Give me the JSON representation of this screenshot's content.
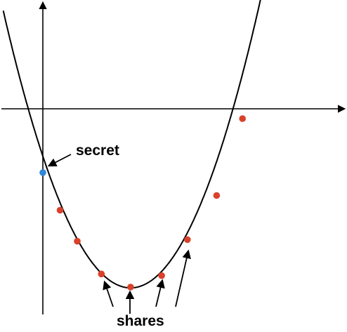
{
  "labels": {
    "secret": "secret",
    "shares": "shares"
  },
  "colors": {
    "curve": "#000000",
    "axes": "#000000",
    "secret_point": "#2f86d6",
    "share_point": "#d9412b"
  },
  "points": {
    "secret": {
      "x": 0,
      "y": -3.9
    },
    "shares": [
      {
        "x": 1.0,
        "y": -6.2
      },
      {
        "x": 2.0,
        "y": -8.1
      },
      {
        "x": 3.4,
        "y": -10.1
      },
      {
        "x": 5.1,
        "y": -10.9
      },
      {
        "x": 6.9,
        "y": -10.2
      },
      {
        "x": 8.4,
        "y": -8.0
      },
      {
        "x": 10.1,
        "y": -5.3
      },
      {
        "x": 11.6,
        "y": -0.6
      }
    ]
  }
}
